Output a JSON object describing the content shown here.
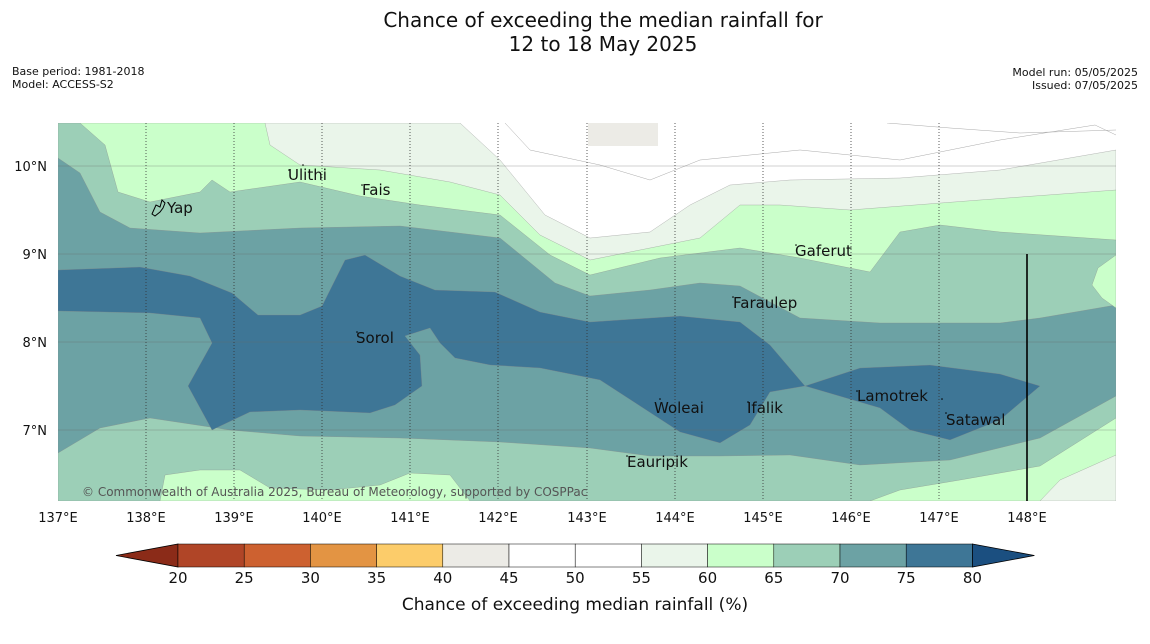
{
  "title": {
    "line1": "Chance of exceeding the median rainfall for",
    "line2": "12 to 18 May 2025"
  },
  "meta": {
    "base_period": "Base period: 1981-2018",
    "model": "Model: ACCESS-S2",
    "model_run": "Model run: 05/05/2025",
    "issued": "Issued: 07/05/2025"
  },
  "map": {
    "lon_labels": [
      "137°E",
      "138°E",
      "139°E",
      "140°E",
      "141°E",
      "142°E",
      "143°E",
      "144°E",
      "145°E",
      "146°E",
      "147°E",
      "148°E"
    ],
    "lat_labels": [
      "10°N",
      "9°N",
      "8°N",
      "7°N"
    ],
    "places": [
      "Yap",
      "Ulithi",
      "Fais",
      "Gaferut",
      "Faraulep",
      "Sorol",
      "Woleai",
      "Ifalik",
      "Lamotrek",
      "Satawal",
      "Eauripik"
    ],
    "credit": "© Commonwealth of Australia 2025, Bureau of Meteorology, supported by COSPPac",
    "colors": {
      "c55_60": "#eaf5ea",
      "c60_65": "#caffca",
      "c65_70": "#9ccfb7",
      "c70_75": "#6ca2a4",
      "c75_80": "#3e7696",
      "c40_45": "#ecebe6"
    }
  },
  "colorbar": {
    "ticks": [
      "20",
      "25",
      "30",
      "35",
      "40",
      "45",
      "50",
      "55",
      "60",
      "65",
      "70",
      "75",
      "80"
    ],
    "colors": [
      "#8b2b18",
      "#b04527",
      "#cd6130",
      "#e39443",
      "#fccc6a",
      "#ecebe6",
      "#ffffff",
      "#ffffff",
      "#eaf5ea",
      "#caffca",
      "#9ccfb7",
      "#6ca2a4",
      "#3e7696",
      "#1b4f80"
    ],
    "label": "Chance of exceeding median rainfall (%)"
  }
}
